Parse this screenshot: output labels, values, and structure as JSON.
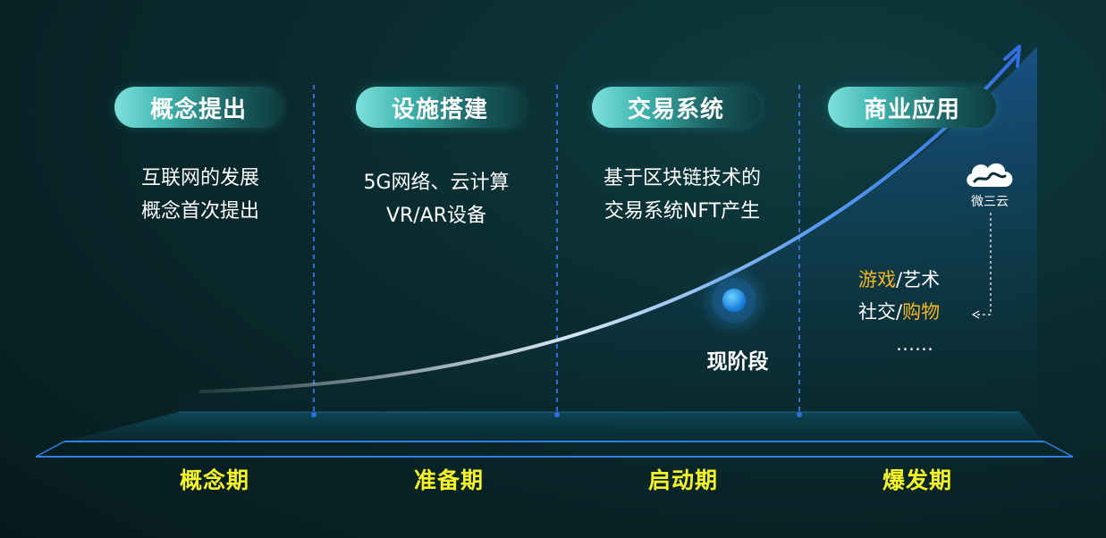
{
  "stages": [
    {
      "title": "概念提出",
      "lines": [
        "互联网的发展",
        "概念首次提出"
      ],
      "period": "概念期"
    },
    {
      "title": "设施搭建",
      "lines": [
        "5G网络、云计算",
        "VR/AR设备"
      ],
      "period": "准备期"
    },
    {
      "title": "交易系统",
      "lines": [
        "基于区块链技术的",
        "交易系统NFT产生"
      ],
      "period": "启动期"
    },
    {
      "title": "商业应用",
      "period": "爆发期"
    }
  ],
  "current_marker": "现阶段",
  "applications": {
    "line1": {
      "highlight": "游戏",
      "rest": "/艺术"
    },
    "line2": {
      "rest": "社交/",
      "highlight": "购物"
    },
    "ellipsis": "……"
  },
  "brand": {
    "name": "微三云"
  },
  "colors": {
    "period_text": "#f5f22a",
    "highlight": "#f5b622",
    "curve": "#2f6fe0",
    "marker": "#1ea0e8"
  }
}
